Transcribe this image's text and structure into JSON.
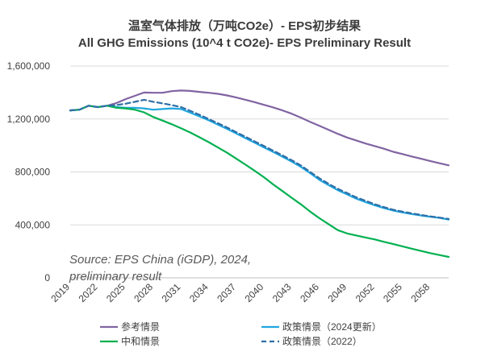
{
  "chart_data": {
    "type": "line",
    "title": "温室气体排放（万吨CO2e）- EPS初步结果",
    "subtitle": "All GHG Emissions (10^4 t CO2e)- EPS Preliminary Result",
    "source_line1": "Source: EPS China (iGDP), 2024,",
    "source_line2": "preliminary result",
    "ylim": [
      0,
      1600000
    ],
    "yticks": [
      0,
      400000,
      800000,
      1200000,
      1600000
    ],
    "ytick_labels": [
      "0",
      "400,000",
      "800,000",
      "1,200,000",
      "1,600,000"
    ],
    "xlim": [
      2019,
      2060
    ],
    "xtick_labels": [
      "2019",
      "2022",
      "2025",
      "2028",
      "2031",
      "2034",
      "2037",
      "2040",
      "2043",
      "2046",
      "2049",
      "2052",
      "2055",
      "2058"
    ],
    "grid": "horizontal",
    "legend_position": "bottom",
    "series": [
      {
        "name": "参考情景",
        "color": "#8064a2",
        "dashed": false,
        "points": [
          [
            2019,
            1265000
          ],
          [
            2020,
            1270000
          ],
          [
            2021,
            1300000
          ],
          [
            2022,
            1290000
          ],
          [
            2023,
            1300000
          ],
          [
            2024,
            1320000
          ],
          [
            2025,
            1350000
          ],
          [
            2026,
            1375000
          ],
          [
            2027,
            1400000
          ],
          [
            2028,
            1398000
          ],
          [
            2029,
            1398000
          ],
          [
            2030,
            1410000
          ],
          [
            2031,
            1415000
          ],
          [
            2032,
            1412000
          ],
          [
            2033,
            1405000
          ],
          [
            2034,
            1398000
          ],
          [
            2035,
            1390000
          ],
          [
            2036,
            1378000
          ],
          [
            2037,
            1362000
          ],
          [
            2038,
            1345000
          ],
          [
            2039,
            1327000
          ],
          [
            2040,
            1307000
          ],
          [
            2041,
            1287000
          ],
          [
            2042,
            1265000
          ],
          [
            2043,
            1240000
          ],
          [
            2044,
            1210000
          ],
          [
            2045,
            1178000
          ],
          [
            2046,
            1148000
          ],
          [
            2047,
            1118000
          ],
          [
            2048,
            1088000
          ],
          [
            2049,
            1060000
          ],
          [
            2050,
            1038000
          ],
          [
            2051,
            1015000
          ],
          [
            2052,
            995000
          ],
          [
            2053,
            975000
          ],
          [
            2054,
            952000
          ],
          [
            2055,
            935000
          ],
          [
            2056,
            917000
          ],
          [
            2057,
            900000
          ],
          [
            2058,
            883000
          ],
          [
            2059,
            866000
          ],
          [
            2060,
            850000
          ]
        ]
      },
      {
        "name": "政策情景（2024更新）",
        "color": "#1fa6e0",
        "dashed": false,
        "points": [
          [
            2019,
            1265000
          ],
          [
            2020,
            1270000
          ],
          [
            2021,
            1300000
          ],
          [
            2022,
            1290000
          ],
          [
            2023,
            1300000
          ],
          [
            2024,
            1290000
          ],
          [
            2025,
            1285000
          ],
          [
            2026,
            1285000
          ],
          [
            2027,
            1280000
          ],
          [
            2028,
            1270000
          ],
          [
            2029,
            1275000
          ],
          [
            2030,
            1280000
          ],
          [
            2031,
            1275000
          ],
          [
            2032,
            1248000
          ],
          [
            2033,
            1220000
          ],
          [
            2034,
            1190000
          ],
          [
            2035,
            1158000
          ],
          [
            2036,
            1125000
          ],
          [
            2037,
            1090000
          ],
          [
            2038,
            1055000
          ],
          [
            2039,
            1020000
          ],
          [
            2040,
            985000
          ],
          [
            2041,
            950000
          ],
          [
            2042,
            915000
          ],
          [
            2043,
            878000
          ],
          [
            2044,
            838000
          ],
          [
            2045,
            790000
          ],
          [
            2046,
            740000
          ],
          [
            2047,
            700000
          ],
          [
            2048,
            662000
          ],
          [
            2049,
            630000
          ],
          [
            2050,
            598000
          ],
          [
            2051,
            572000
          ],
          [
            2052,
            548000
          ],
          [
            2053,
            527000
          ],
          [
            2054,
            508000
          ],
          [
            2055,
            494000
          ],
          [
            2056,
            482000
          ],
          [
            2057,
            471000
          ],
          [
            2058,
            462000
          ],
          [
            2059,
            453000
          ],
          [
            2060,
            440000
          ]
        ]
      },
      {
        "name": "中和情景",
        "color": "#00b050",
        "dashed": false,
        "points": [
          [
            2019,
            1265000
          ],
          [
            2020,
            1270000
          ],
          [
            2021,
            1300000
          ],
          [
            2022,
            1290000
          ],
          [
            2023,
            1300000
          ],
          [
            2024,
            1285000
          ],
          [
            2025,
            1280000
          ],
          [
            2026,
            1270000
          ],
          [
            2027,
            1250000
          ],
          [
            2028,
            1215000
          ],
          [
            2029,
            1188000
          ],
          [
            2030,
            1160000
          ],
          [
            2031,
            1130000
          ],
          [
            2032,
            1098000
          ],
          [
            2033,
            1062000
          ],
          [
            2034,
            1025000
          ],
          [
            2035,
            985000
          ],
          [
            2036,
            945000
          ],
          [
            2037,
            900000
          ],
          [
            2038,
            855000
          ],
          [
            2039,
            808000
          ],
          [
            2040,
            760000
          ],
          [
            2041,
            705000
          ],
          [
            2042,
            655000
          ],
          [
            2043,
            605000
          ],
          [
            2044,
            555000
          ],
          [
            2045,
            500000
          ],
          [
            2046,
            450000
          ],
          [
            2047,
            405000
          ],
          [
            2048,
            360000
          ],
          [
            2049,
            335000
          ],
          [
            2050,
            320000
          ],
          [
            2051,
            305000
          ],
          [
            2052,
            290000
          ],
          [
            2053,
            272000
          ],
          [
            2054,
            255000
          ],
          [
            2055,
            238000
          ],
          [
            2056,
            220000
          ],
          [
            2057,
            203000
          ],
          [
            2058,
            187000
          ],
          [
            2059,
            172000
          ],
          [
            2060,
            158000
          ]
        ]
      },
      {
        "name": "政策情景（2022）",
        "color": "#2f6fa7",
        "dashed": true,
        "points": [
          [
            2019,
            1265000
          ],
          [
            2020,
            1270000
          ],
          [
            2021,
            1300000
          ],
          [
            2022,
            1290000
          ],
          [
            2023,
            1300000
          ],
          [
            2024,
            1305000
          ],
          [
            2025,
            1315000
          ],
          [
            2026,
            1330000
          ],
          [
            2027,
            1345000
          ],
          [
            2028,
            1330000
          ],
          [
            2029,
            1318000
          ],
          [
            2030,
            1305000
          ],
          [
            2031,
            1290000
          ],
          [
            2032,
            1262000
          ],
          [
            2033,
            1232000
          ],
          [
            2034,
            1200000
          ],
          [
            2035,
            1168000
          ],
          [
            2036,
            1135000
          ],
          [
            2037,
            1100000
          ],
          [
            2038,
            1065000
          ],
          [
            2039,
            1030000
          ],
          [
            2040,
            995000
          ],
          [
            2041,
            960000
          ],
          [
            2042,
            925000
          ],
          [
            2043,
            888000
          ],
          [
            2044,
            848000
          ],
          [
            2045,
            800000
          ],
          [
            2046,
            752000
          ],
          [
            2047,
            710000
          ],
          [
            2048,
            672000
          ],
          [
            2049,
            640000
          ],
          [
            2050,
            608000
          ],
          [
            2051,
            582000
          ],
          [
            2052,
            556000
          ],
          [
            2053,
            534000
          ],
          [
            2054,
            514000
          ],
          [
            2055,
            500000
          ],
          [
            2056,
            487000
          ],
          [
            2057,
            475000
          ],
          [
            2058,
            464000
          ],
          [
            2059,
            455000
          ],
          [
            2060,
            445000
          ]
        ]
      }
    ]
  }
}
